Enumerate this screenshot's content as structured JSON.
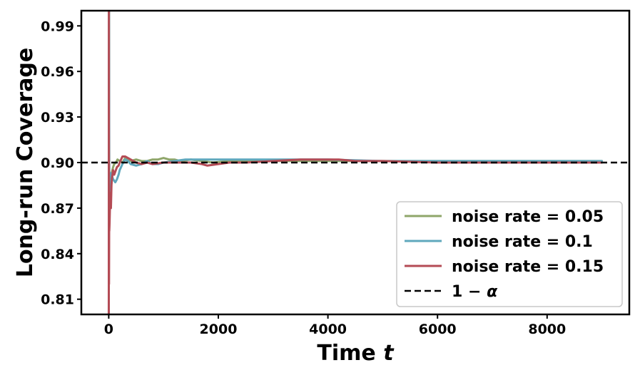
{
  "chart_data": {
    "type": "line",
    "xlabel": "Time",
    "xlabel_var": "t",
    "ylabel": "Long-run Coverage",
    "xlim": [
      -500,
      9500
    ],
    "ylim": [
      0.8,
      1.0
    ],
    "xticks": [
      0,
      2000,
      4000,
      6000,
      8000
    ],
    "xtick_labels": [
      "0",
      "2000",
      "4000",
      "6000",
      "8000"
    ],
    "yticks": [
      0.81,
      0.84,
      0.87,
      0.9,
      0.93,
      0.96,
      0.99
    ],
    "ytick_labels": [
      "0.81",
      "0.84",
      "0.87",
      "0.90",
      "0.93",
      "0.96",
      "0.99"
    ],
    "grid": false,
    "legend_position": "lower-right",
    "reference_line": {
      "label": "1 − α",
      "label_main": "1 − ",
      "label_var": "α",
      "y": 0.9,
      "color": "#000000",
      "style": "dashed"
    },
    "series": [
      {
        "name": "noise rate = 0.05",
        "color": "#8fa66a",
        "x": [
          1,
          5,
          10,
          20,
          40,
          60,
          80,
          100,
          130,
          160,
          200,
          250,
          300,
          400,
          500,
          600,
          700,
          800,
          900,
          1000,
          1100,
          1200,
          1300,
          1500,
          1700,
          1900,
          2200,
          2500,
          3000,
          3500,
          4000,
          4500,
          5000,
          6000,
          7000,
          8000,
          9000
        ],
        "y": [
          0.8,
          1.0,
          0.86,
          0.88,
          0.892,
          0.894,
          0.897,
          0.899,
          0.9,
          0.902,
          0.901,
          0.9,
          0.903,
          0.901,
          0.902,
          0.901,
          0.901,
          0.902,
          0.902,
          0.903,
          0.902,
          0.902,
          0.901,
          0.902,
          0.901,
          0.9,
          0.901,
          0.901,
          0.901,
          0.901,
          0.901,
          0.901,
          0.901,
          0.901,
          0.901,
          0.901,
          0.901
        ]
      },
      {
        "name": "noise rate = 0.1",
        "color": "#5fa8bd",
        "x": [
          1,
          5,
          10,
          20,
          40,
          60,
          80,
          100,
          120,
          150,
          180,
          200,
          250,
          300,
          350,
          400,
          500,
          600,
          700,
          800,
          900,
          1000,
          1200,
          1400,
          1600,
          1800,
          2000,
          2200,
          2500,
          3000,
          3500,
          4000,
          5000,
          6000,
          7000,
          8000,
          9000
        ],
        "y": [
          0.8,
          1.0,
          0.87,
          0.885,
          0.893,
          0.891,
          0.889,
          0.888,
          0.887,
          0.889,
          0.892,
          0.895,
          0.899,
          0.902,
          0.901,
          0.899,
          0.898,
          0.899,
          0.901,
          0.899,
          0.899,
          0.9,
          0.901,
          0.902,
          0.902,
          0.902,
          0.902,
          0.902,
          0.902,
          0.902,
          0.902,
          0.902,
          0.901,
          0.901,
          0.901,
          0.901,
          0.901
        ]
      },
      {
        "name": "noise rate = 0.15",
        "color": "#b44b55",
        "x": [
          1,
          3,
          5,
          8,
          10,
          15,
          20,
          30,
          40,
          50,
          60,
          80,
          100,
          120,
          150,
          180,
          200,
          250,
          300,
          400,
          500,
          600,
          700,
          800,
          1000,
          1200,
          1500,
          1700,
          1800,
          2000,
          2200,
          2500,
          3000,
          3500,
          4000,
          4200,
          4500,
          5000,
          6000,
          7000,
          8000,
          9000
        ],
        "y": [
          0.8,
          1.0,
          0.82,
          0.86,
          0.855,
          0.86,
          0.868,
          0.88,
          0.87,
          0.885,
          0.89,
          0.895,
          0.892,
          0.894,
          0.897,
          0.898,
          0.9,
          0.904,
          0.904,
          0.902,
          0.9,
          0.899,
          0.9,
          0.899,
          0.9,
          0.9,
          0.9,
          0.899,
          0.898,
          0.899,
          0.9,
          0.9,
          0.901,
          0.902,
          0.902,
          0.902,
          0.901,
          0.901,
          0.9,
          0.9,
          0.9,
          0.9
        ]
      }
    ]
  }
}
